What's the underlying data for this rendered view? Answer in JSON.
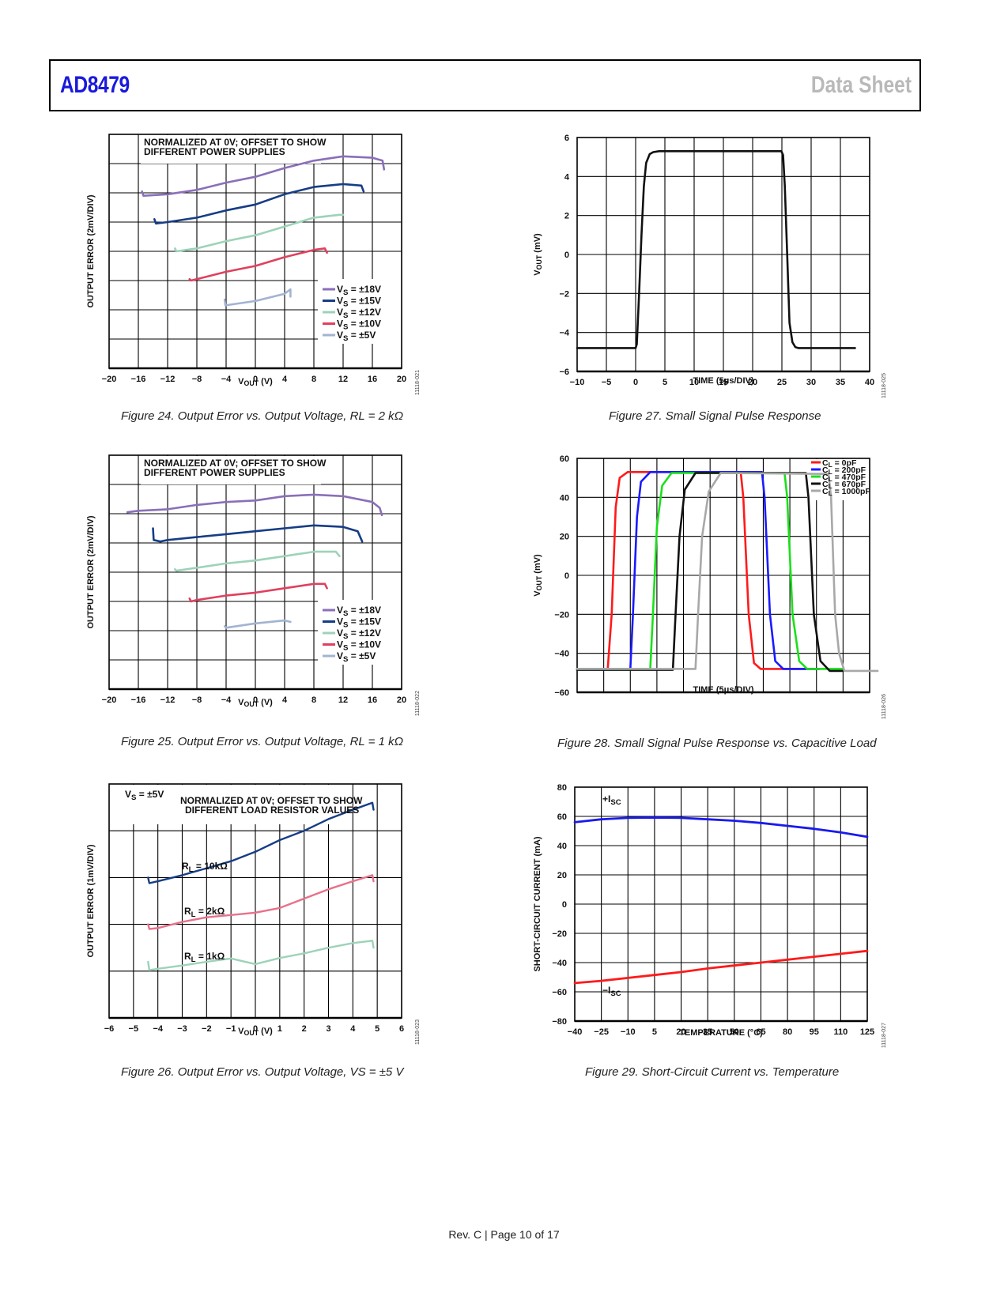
{
  "header": {
    "part_number": "AD8479",
    "doc_type": "Data Sheet"
  },
  "footer": {
    "text": "Rev. C | Page 10 of 17"
  },
  "chart_data": [
    {
      "id": "fig24",
      "type": "line",
      "caption": "Figure 24. Output Error vs. Output Voltage, RL = 2 kΩ",
      "annotation": "NORMALIZED AT 0V; OFFSET TO SHOW\nDIFFERENT POWER SUPPLIES",
      "xlabel": "VOUT (V)",
      "ylabel": "OUTPUT ERROR (2mV/DIV)",
      "xlim": [
        -20,
        20
      ],
      "xticks": [
        "−20",
        "−16",
        "−12",
        "−8",
        "−4",
        "0",
        "4",
        "8",
        "12",
        "16",
        "20"
      ],
      "ydivs": 8,
      "grid": true,
      "legend": "bottom-right",
      "code": "11118-021",
      "series": [
        {
          "name": "VS = ±18V",
          "color": "#8a6fb8",
          "x": [
            -15.5,
            -15.3,
            -12,
            -8,
            -4,
            0,
            4,
            8,
            12,
            16,
            17.4,
            17.6
          ],
          "y": [
            6.05,
            5.9,
            5.95,
            6.1,
            6.35,
            6.55,
            6.85,
            7.1,
            7.25,
            7.2,
            7.1,
            6.8
          ]
        },
        {
          "name": "VS = ±15V",
          "color": "#163d86",
          "x": [
            -13.8,
            -13.6,
            -12,
            -8,
            -4,
            0,
            4,
            8,
            12,
            14.5,
            14.8
          ],
          "y": [
            5.1,
            4.95,
            5.0,
            5.15,
            5.4,
            5.6,
            5.95,
            6.2,
            6.3,
            6.25,
            6.05
          ]
        },
        {
          "name": "VS = ±12V",
          "color": "#9dd3b8",
          "x": [
            -11,
            -10.8,
            -8,
            -4,
            0,
            4,
            8,
            11.5,
            12
          ],
          "y": [
            4.1,
            4.0,
            4.1,
            4.35,
            4.55,
            4.85,
            5.15,
            5.25,
            5.25
          ]
        },
        {
          "name": "VS = ±10V",
          "color": "#e0405e",
          "x": [
            -9,
            -8.8,
            -8,
            -4,
            0,
            4,
            8,
            9.5,
            9.8
          ],
          "y": [
            3.05,
            3.0,
            3.05,
            3.3,
            3.5,
            3.8,
            4.05,
            4.1,
            3.95
          ]
        },
        {
          "name": "VS = ±5V",
          "color": "#a3b3d1",
          "x": [
            -4.2,
            -4.1,
            0,
            4,
            4.8,
            4.8
          ],
          "y": [
            2.35,
            2.15,
            2.3,
            2.55,
            2.7,
            2.45
          ]
        }
      ]
    },
    {
      "id": "fig25",
      "type": "line",
      "caption": "Figure 25. Output Error vs. Output Voltage, RL = 1 kΩ",
      "annotation": "NORMALIZED AT 0V; OFFSET TO SHOW\nDIFFERENT POWER SUPPLIES",
      "xlabel": "VOUT (V)",
      "ylabel": "OUTPUT ERROR (2mV/DIV)",
      "xlim": [
        -20,
        20
      ],
      "xticks": [
        "−20",
        "−16",
        "−12",
        "−8",
        "−4",
        "0",
        "4",
        "8",
        "12",
        "16",
        "20"
      ],
      "ydivs": 8,
      "grid": true,
      "legend": "bottom-right",
      "code": "11118-022",
      "series": [
        {
          "name": "VS = ±18V",
          "color": "#8a6fb8",
          "x": [
            -17.5,
            -16,
            -12,
            -8,
            -4,
            0,
            4,
            8,
            12,
            16,
            17,
            17.3
          ],
          "y": [
            6.05,
            6.1,
            6.15,
            6.3,
            6.4,
            6.45,
            6.6,
            6.65,
            6.6,
            6.4,
            6.2,
            5.95
          ]
        },
        {
          "name": "VS = ±15V",
          "color": "#163d86",
          "x": [
            -14,
            -13.9,
            -13,
            -12,
            -8,
            -4,
            0,
            4,
            8,
            12,
            14,
            14.6
          ],
          "y": [
            5.5,
            5.1,
            5.05,
            5.1,
            5.2,
            5.3,
            5.4,
            5.5,
            5.6,
            5.55,
            5.4,
            5.05
          ]
        },
        {
          "name": "VS = ±12V",
          "color": "#9dd3b8",
          "x": [
            -11,
            -10.8,
            -8,
            -4,
            0,
            4,
            8,
            11,
            11.5
          ],
          "y": [
            4.1,
            4.05,
            4.15,
            4.3,
            4.4,
            4.55,
            4.7,
            4.7,
            4.55
          ]
        },
        {
          "name": "VS = ±10V",
          "color": "#e0405e",
          "x": [
            -9,
            -8.8,
            -8,
            -4,
            0,
            4,
            8,
            9.5,
            9.8
          ],
          "y": [
            3.1,
            3.0,
            3.05,
            3.2,
            3.3,
            3.45,
            3.6,
            3.6,
            3.45
          ]
        },
        {
          "name": "VS = ±5V",
          "color": "#a3b3d1",
          "x": [
            -4.2,
            -4,
            0,
            4,
            4.8
          ],
          "y": [
            2.15,
            2.1,
            2.25,
            2.35,
            2.3
          ]
        }
      ]
    },
    {
      "id": "fig26",
      "type": "line",
      "caption": "Figure 26. Output Error vs. Output Voltage, VS = ±5 V",
      "annotation": "NORMALIZED AT 0V; OFFSET TO SHOW\nDIFFERENT LOAD RESISTOR VALUES",
      "annotation2": "VS = ±5V",
      "xlabel": "VOUT (V)",
      "ylabel": "OUTPUT ERROR (1mV/DIV)",
      "xlim": [
        -6,
        6
      ],
      "xticks": [
        "−6",
        "−5",
        "−4",
        "−3",
        "−2",
        "−1",
        "0",
        "1",
        "2",
        "3",
        "4",
        "5",
        "6"
      ],
      "ydivs": 5,
      "grid": true,
      "code": "11118-023",
      "series": [
        {
          "name": "RL = 10kΩ",
          "color": "#163d86",
          "x": [
            -4.4,
            -4.35,
            -4,
            -3,
            -2,
            -1,
            0,
            1,
            2,
            3,
            4,
            4.8,
            4.85
          ],
          "y": [
            3.0,
            2.88,
            2.92,
            3.05,
            3.2,
            3.35,
            3.55,
            3.8,
            4.0,
            4.25,
            4.45,
            4.6,
            4.45
          ]
        },
        {
          "name": "RL = 2kΩ",
          "color": "#e8718a",
          "x": [
            -4.4,
            -4.35,
            -4,
            -3,
            -2,
            -1,
            0,
            1,
            2,
            3,
            4,
            4.8,
            4.85
          ],
          "y": [
            2.0,
            1.9,
            1.92,
            2.05,
            2.15,
            2.2,
            2.25,
            2.35,
            2.55,
            2.75,
            2.92,
            3.05,
            2.92
          ]
        },
        {
          "name": "RL = 1kΩ",
          "color": "#9dd3b8",
          "x": [
            -4.4,
            -4.35,
            -4,
            -3,
            -2,
            -1,
            0,
            1,
            2,
            3,
            4,
            4.8,
            4.85
          ],
          "y": [
            1.2,
            1.02,
            1.05,
            1.12,
            1.2,
            1.27,
            1.15,
            1.28,
            1.38,
            1.5,
            1.6,
            1.65,
            1.5
          ]
        }
      ],
      "labels": [
        "RL = 10kΩ",
        "RL = 2kΩ",
        "RL = 1kΩ"
      ]
    },
    {
      "id": "fig27",
      "type": "line",
      "caption": "Figure 27. Small Signal Pulse Response",
      "xlabel": "TIME (5μs/DIV)",
      "ylabel": "VOUT (mV)",
      "xlim": [
        -10,
        40
      ],
      "ylim": [
        -6,
        6
      ],
      "xticks": [
        "−10",
        "−5",
        "0",
        "5",
        "10",
        "15",
        "20",
        "25",
        "30",
        "35",
        "40"
      ],
      "yticks": [
        "6",
        "4",
        "2",
        "0",
        "−2",
        "−4",
        "−6"
      ],
      "grid": true,
      "code": "11118-025",
      "series": [
        {
          "name": "VOUT",
          "color": "#111111",
          "x": [
            -10,
            0,
            0.2,
            0.6,
            1.0,
            1.4,
            1.8,
            2.4,
            3.0,
            4,
            24.9,
            25.2,
            25.5,
            25.9,
            26.3,
            26.8,
            27.3,
            27.8,
            37.5
          ],
          "y": [
            -4.8,
            -4.8,
            -4.6,
            -2,
            1,
            3.5,
            4.7,
            5.15,
            5.25,
            5.3,
            5.3,
            5.1,
            3.5,
            0,
            -3.5,
            -4.5,
            -4.75,
            -4.8,
            -4.8
          ]
        }
      ]
    },
    {
      "id": "fig28",
      "type": "line",
      "caption": "Figure 28. Small Signal Pulse Response vs. Capacitive Load",
      "xlabel": "TIME (5μs/DIV)",
      "ylabel": "VOUT (mV)",
      "xlim": [
        0,
        11
      ],
      "ylim": [
        -60,
        60
      ],
      "yticks": [
        "60",
        "40",
        "20",
        "0",
        "−20",
        "−40",
        "−60"
      ],
      "grid": true,
      "legend": "top-right",
      "code": "11118-026",
      "series": [
        {
          "name": "CL = 0pF",
          "color": "#ff1a1a",
          "x": [
            0,
            1.15,
            1.3,
            1.45,
            1.6,
            1.9,
            6.15,
            6.25,
            6.45,
            6.65,
            6.9,
            9.1
          ],
          "y": [
            -48,
            -48,
            -20,
            35,
            50,
            53,
            53,
            40,
            -20,
            -45,
            -48,
            -48
          ]
        },
        {
          "name": "CL = 200pF",
          "color": "#1a1aff",
          "x": [
            0,
            2.0,
            2.1,
            2.25,
            2.4,
            2.75,
            6.95,
            7.05,
            7.25,
            7.45,
            7.75,
            9.1
          ],
          "y": [
            -48,
            -48,
            -20,
            30,
            48,
            53,
            53,
            40,
            -20,
            -44,
            -48,
            -48
          ]
        },
        {
          "name": "CL = 470pF",
          "color": "#1ae01a",
          "x": [
            0,
            2.75,
            2.85,
            3.0,
            3.2,
            3.55,
            7.8,
            7.9,
            8.1,
            8.35,
            8.65,
            10.0
          ],
          "y": [
            -48,
            -48,
            -20,
            25,
            46,
            52.5,
            52.5,
            40,
            -20,
            -44,
            -48,
            -48
          ]
        },
        {
          "name": "CL = 670pF",
          "color": "#111111",
          "x": [
            0,
            3.6,
            3.7,
            3.85,
            4.05,
            4.45,
            8.6,
            8.7,
            8.9,
            9.15,
            9.5,
            10.0
          ],
          "y": [
            -48.5,
            -48.5,
            -20,
            20,
            44,
            52.5,
            52.5,
            40,
            -20,
            -44,
            -49,
            -49
          ]
        },
        {
          "name": "CL = 1000pF",
          "color": "#a8a8a8",
          "x": [
            0,
            4.45,
            4.55,
            4.7,
            4.95,
            5.4,
            9.45,
            9.55,
            9.7,
            9.85,
            10.05,
            11.3
          ],
          "y": [
            -48,
            -48,
            -20,
            20,
            43,
            52.5,
            52,
            40,
            -20,
            -40,
            -49,
            -49
          ]
        }
      ]
    },
    {
      "id": "fig29",
      "type": "line",
      "caption": "Figure 29. Short-Circuit Current vs. Temperature",
      "xlabel": "TEMPERATURE (°C)",
      "ylabel": "SHORT-CIRCUIT CURRENT (mA)",
      "xlim": [
        -40,
        125
      ],
      "ylim": [
        -80,
        80
      ],
      "xticks": [
        "−40",
        "−25",
        "−10",
        "5",
        "20",
        "35",
        "50",
        "65",
        "80",
        "95",
        "110",
        "125"
      ],
      "yticks": [
        "80",
        "60",
        "40",
        "20",
        "0",
        "−20",
        "−40",
        "−60",
        "−80"
      ],
      "grid": true,
      "code": "11118-027",
      "series": [
        {
          "name": "+ISC",
          "color": "#1a1aee",
          "x": [
            -40,
            -25,
            -10,
            5,
            20,
            35,
            50,
            65,
            80,
            95,
            110,
            125
          ],
          "y": [
            56,
            58,
            59,
            59.2,
            59,
            58,
            57,
            55.5,
            53.5,
            51.5,
            49,
            46
          ]
        },
        {
          "name": "−ISC",
          "color": "#ff1a1a",
          "x": [
            -40,
            -25,
            -10,
            5,
            20,
            35,
            50,
            65,
            80,
            95,
            110,
            125
          ],
          "y": [
            -54,
            -52.5,
            -50.5,
            -48.5,
            -46.5,
            -44,
            -42,
            -40,
            -38,
            -36,
            -34,
            -32
          ]
        }
      ],
      "labels": [
        "+ISC",
        "−ISC"
      ]
    }
  ]
}
